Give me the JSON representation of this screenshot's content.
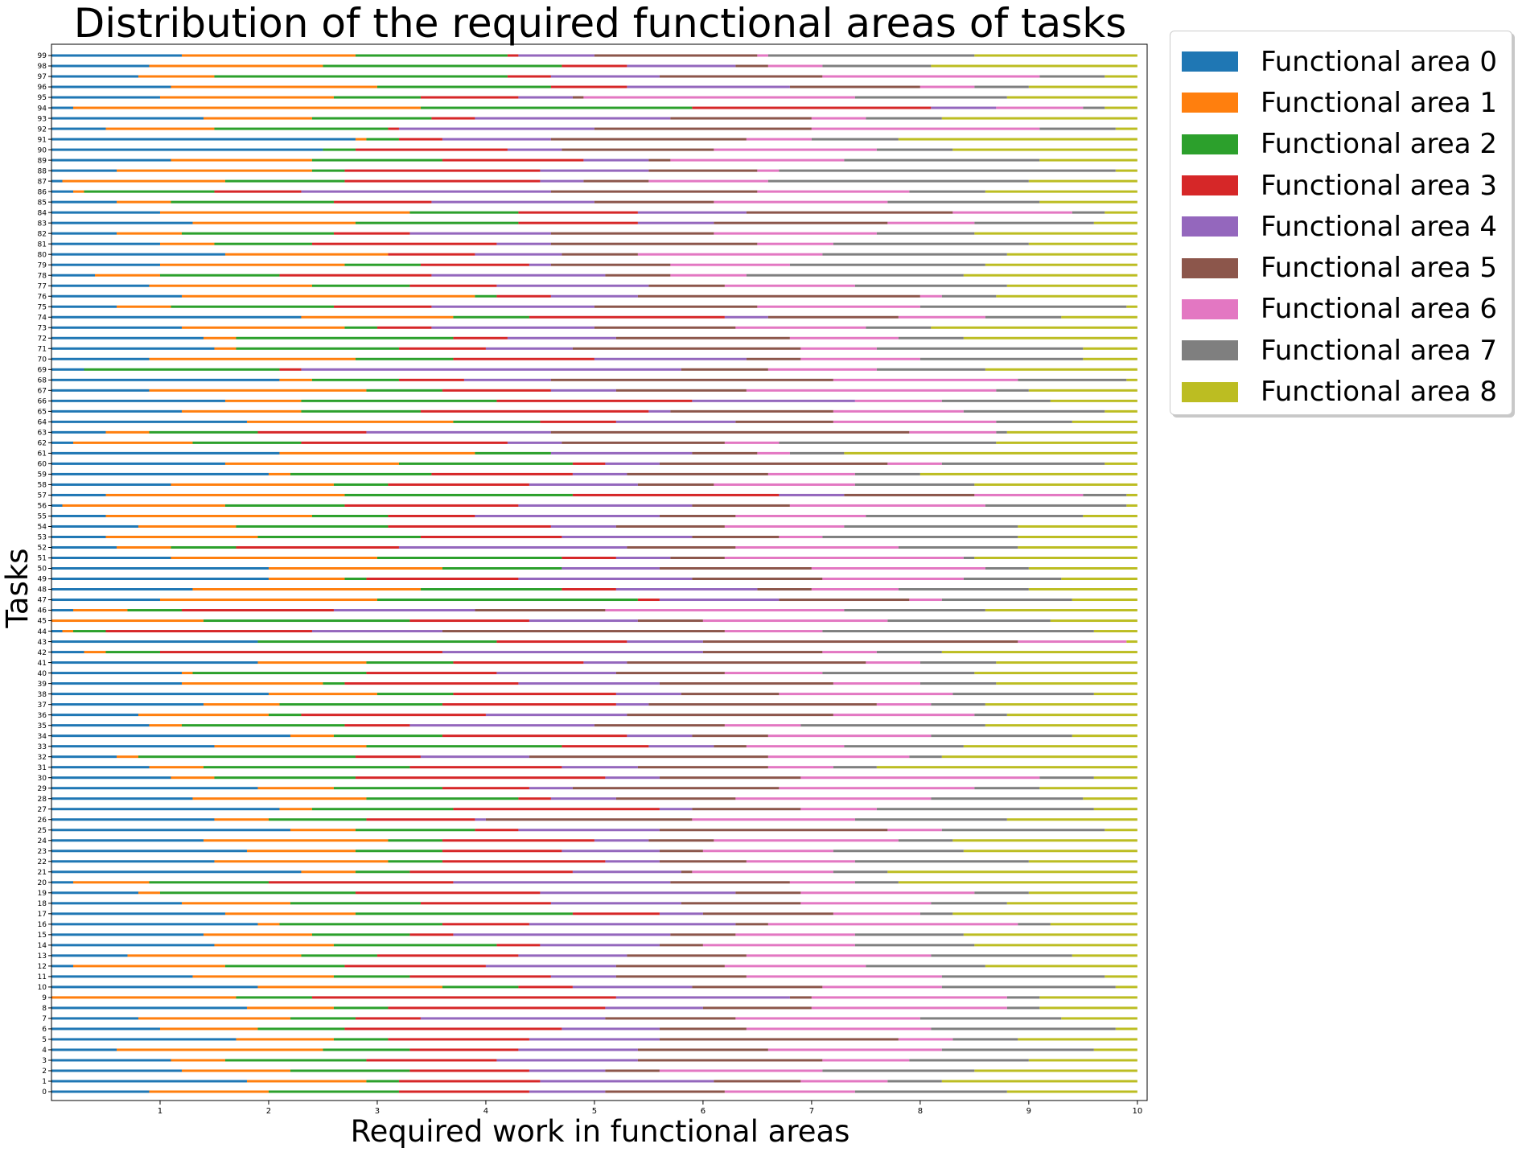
{
  "chart_data": {
    "type": "bar",
    "orientation": "horizontal",
    "stacked": true,
    "title": "Distribution of the required functional areas of tasks",
    "xlabel": "Required work in functional areas",
    "ylabel": "Tasks",
    "xlim": [
      0,
      10
    ],
    "x_ticks": [
      "1",
      "2",
      "3",
      "4",
      "5",
      "6",
      "7",
      "8",
      "9",
      "10"
    ],
    "legend_position": "outside-top-right",
    "series": [
      {
        "name": "Functional area 0",
        "color": "#1f77b4"
      },
      {
        "name": "Functional area 1",
        "color": "#ff7f0e"
      },
      {
        "name": "Functional area 2",
        "color": "#2ca02c"
      },
      {
        "name": "Functional area 3",
        "color": "#d62728"
      },
      {
        "name": "Functional area 4",
        "color": "#9467bd"
      },
      {
        "name": "Functional area 5",
        "color": "#8c564b"
      },
      {
        "name": "Functional area 6",
        "color": "#e377c2"
      },
      {
        "name": "Functional area 7",
        "color": "#7f7f7f"
      },
      {
        "name": "Functional area 8",
        "color": "#bcbd22"
      }
    ],
    "categories": [
      "0",
      "1",
      "2",
      "3",
      "4",
      "5",
      "6",
      "7",
      "8",
      "9",
      "10",
      "11",
      "12",
      "13",
      "14",
      "15",
      "16",
      "17",
      "18",
      "19",
      "20",
      "21",
      "22",
      "23",
      "24",
      "25",
      "26",
      "27",
      "28",
      "29",
      "30",
      "31",
      "32",
      "33",
      "34",
      "35",
      "36",
      "37",
      "38",
      "39",
      "40",
      "41",
      "42",
      "43",
      "44",
      "45",
      "46",
      "47",
      "48",
      "49",
      "50",
      "51",
      "52",
      "53",
      "54",
      "55",
      "56",
      "57",
      "58",
      "59",
      "60",
      "61",
      "62",
      "63",
      "64",
      "65",
      "66",
      "67",
      "68",
      "69",
      "70",
      "71",
      "72",
      "73",
      "74",
      "75",
      "76",
      "77",
      "78",
      "79",
      "80",
      "81",
      "82",
      "83",
      "84",
      "85",
      "86",
      "87",
      "88",
      "89",
      "90",
      "91",
      "92",
      "93",
      "94",
      "95",
      "96",
      "97",
      "98",
      "99"
    ],
    "cumulative_boundaries": [
      [
        0.9,
        2.0,
        3.2,
        4.4,
        5.1,
        6.2,
        7.4,
        8.8
      ],
      [
        1.8,
        2.9,
        3.2,
        4.5,
        6.1,
        6.9,
        7.7,
        8.2
      ],
      [
        1.2,
        2.2,
        3.3,
        4.4,
        5.1,
        5.6,
        7.1,
        8.5
      ],
      [
        1.1,
        1.6,
        2.9,
        4.1,
        5.4,
        7.1,
        7.9,
        9.0
      ],
      [
        0.6,
        2.5,
        3.3,
        4.3,
        5.4,
        6.6,
        8.2,
        9.6
      ],
      [
        1.7,
        2.6,
        3.1,
        4.4,
        5.6,
        7.8,
        8.3,
        8.9
      ],
      [
        1.0,
        1.9,
        2.7,
        4.7,
        5.6,
        6.4,
        8.1,
        9.8
      ],
      [
        0.8,
        2.2,
        2.8,
        3.4,
        5.1,
        6.3,
        8.0,
        9.3
      ],
      [
        1.8,
        2.6,
        3.1,
        5.1,
        6.0,
        7.0,
        8.8,
        9.1
      ],
      [
        0.0,
        1.7,
        2.4,
        5.2,
        6.8,
        7.0,
        8.8,
        9.1
      ],
      [
        1.9,
        3.6,
        4.3,
        4.8,
        5.9,
        7.1,
        8.2,
        9.8
      ],
      [
        1.3,
        2.6,
        3.3,
        4.6,
        5.2,
        6.4,
        8.2,
        9.7
      ],
      [
        0.2,
        1.6,
        2.7,
        4.0,
        5.2,
        6.2,
        7.5,
        8.6
      ],
      [
        0.7,
        2.3,
        3.0,
        4.3,
        5.3,
        6.4,
        8.1,
        9.4
      ],
      [
        1.5,
        2.6,
        4.1,
        4.5,
        5.6,
        6.0,
        7.4,
        8.5
      ],
      [
        1.4,
        2.4,
        3.3,
        3.7,
        5.7,
        6.3,
        7.4,
        8.4
      ],
      [
        1.9,
        2.1,
        3.6,
        4.4,
        6.3,
        6.6,
        8.9,
        9.2
      ],
      [
        1.6,
        2.8,
        4.8,
        5.6,
        6.0,
        7.2,
        8.0,
        8.3
      ],
      [
        1.2,
        2.2,
        3.4,
        4.6,
        5.8,
        6.9,
        8.1,
        8.8
      ],
      [
        0.8,
        1.0,
        2.8,
        4.5,
        6.3,
        6.9,
        8.5,
        9.0
      ],
      [
        0.2,
        0.9,
        2.0,
        3.7,
        5.7,
        6.8,
        7.4,
        7.8
      ],
      [
        2.3,
        2.8,
        3.3,
        4.8,
        5.8,
        5.9,
        7.2,
        7.7
      ],
      [
        1.5,
        3.1,
        3.6,
        5.1,
        5.6,
        6.4,
        7.4,
        9.0
      ],
      [
        1.8,
        2.8,
        3.6,
        4.7,
        5.6,
        6.0,
        7.2,
        8.4
      ],
      [
        1.4,
        3.1,
        3.6,
        5.0,
        5.5,
        6.1,
        7.8,
        8.3
      ],
      [
        2.2,
        2.8,
        3.9,
        4.3,
        5.6,
        7.7,
        8.2,
        9.7
      ],
      [
        1.5,
        2.0,
        2.9,
        3.9,
        4.0,
        5.9,
        7.4,
        8.8
      ],
      [
        2.1,
        2.4,
        3.7,
        5.6,
        5.9,
        6.9,
        7.6,
        9.6
      ],
      [
        1.3,
        2.9,
        4.3,
        4.6,
        5.2,
        6.3,
        8.1,
        9.5
      ],
      [
        1.9,
        2.6,
        3.6,
        4.4,
        4.8,
        6.7,
        8.5,
        9.1
      ],
      [
        1.1,
        1.5,
        2.8,
        5.1,
        5.6,
        6.9,
        9.1,
        9.6
      ],
      [
        0.9,
        1.4,
        3.3,
        4.7,
        5.4,
        6.6,
        7.2,
        7.6
      ],
      [
        0.6,
        0.8,
        2.8,
        3.4,
        4.4,
        6.6,
        7.9,
        8.2
      ],
      [
        1.5,
        2.9,
        4.7,
        5.5,
        6.1,
        6.4,
        7.3,
        8.4
      ],
      [
        2.2,
        2.6,
        3.6,
        5.3,
        5.9,
        6.6,
        8.1,
        9.4
      ],
      [
        0.9,
        1.2,
        2.7,
        3.3,
        5.0,
        6.2,
        6.9,
        8.6
      ],
      [
        0.8,
        2.0,
        2.3,
        4.0,
        5.3,
        7.2,
        8.5,
        8.8
      ],
      [
        1.4,
        2.1,
        3.6,
        5.2,
        5.5,
        7.6,
        8.1,
        8.6
      ],
      [
        2.0,
        3.0,
        3.7,
        5.2,
        5.8,
        6.7,
        8.3,
        9.6
      ],
      [
        1.2,
        2.5,
        2.7,
        4.3,
        5.6,
        7.2,
        8.0,
        8.7
      ],
      [
        1.2,
        1.3,
        2.9,
        4.1,
        5.2,
        6.2,
        7.1,
        8.5
      ],
      [
        1.9,
        2.9,
        3.7,
        4.9,
        5.3,
        7.5,
        8.0,
        8.7
      ],
      [
        0.3,
        0.5,
        1.0,
        3.6,
        6.0,
        7.1,
        7.6,
        8.2
      ],
      [
        1.9,
        1.9,
        4.1,
        5.3,
        6.0,
        8.9,
        9.9,
        9.9
      ],
      [
        0.1,
        0.2,
        0.5,
        2.4,
        3.6,
        6.2,
        7.1,
        9.6
      ],
      [
        0.0,
        1.4,
        3.3,
        4.4,
        5.4,
        6.0,
        7.7,
        9.2
      ],
      [
        0.2,
        0.7,
        1.2,
        2.6,
        3.9,
        5.1,
        7.3,
        8.6
      ],
      [
        1.0,
        3.0,
        5.4,
        5.6,
        6.7,
        7.9,
        8.2,
        9.4
      ],
      [
        1.3,
        3.4,
        4.7,
        5.2,
        6.5,
        7.0,
        7.8,
        9.0
      ],
      [
        2.0,
        2.7,
        2.9,
        4.3,
        5.9,
        7.1,
        8.4,
        9.3
      ],
      [
        2.0,
        3.6,
        4.7,
        4.7,
        5.6,
        7.0,
        8.6,
        9.0
      ],
      [
        1.1,
        3.0,
        4.7,
        5.2,
        5.7,
        6.2,
        8.4,
        8.5
      ],
      [
        0.6,
        1.1,
        1.7,
        3.2,
        5.3,
        6.3,
        7.8,
        8.9
      ],
      [
        0.5,
        1.9,
        3.4,
        4.7,
        5.9,
        6.7,
        7.1,
        8.9
      ],
      [
        0.8,
        1.7,
        3.1,
        4.6,
        5.2,
        6.2,
        7.3,
        8.9
      ],
      [
        0.5,
        2.4,
        3.1,
        3.9,
        5.6,
        6.3,
        7.5,
        9.5
      ],
      [
        0.1,
        1.6,
        2.7,
        4.3,
        5.9,
        6.8,
        8.6,
        9.9
      ],
      [
        0.5,
        2.7,
        4.8,
        6.7,
        7.3,
        8.5,
        9.5,
        9.9
      ],
      [
        1.1,
        2.6,
        3.1,
        4.4,
        5.4,
        6.1,
        7.4,
        8.5
      ],
      [
        2.0,
        2.2,
        3.5,
        4.8,
        5.3,
        6.6,
        7.4,
        8.0
      ],
      [
        1.6,
        3.2,
        4.8,
        5.1,
        5.6,
        7.7,
        8.2,
        9.7
      ],
      [
        2.1,
        3.9,
        4.6,
        4.6,
        5.9,
        6.5,
        6.8,
        7.3
      ],
      [
        0.2,
        1.3,
        2.3,
        4.2,
        4.7,
        6.2,
        6.7,
        8.7
      ],
      [
        0.5,
        0.9,
        1.9,
        2.9,
        4.6,
        7.9,
        8.7,
        8.8
      ],
      [
        1.8,
        3.7,
        4.5,
        5.2,
        6.3,
        7.2,
        8.7,
        9.4
      ],
      [
        1.2,
        2.3,
        3.4,
        5.5,
        5.7,
        7.2,
        8.4,
        9.7
      ],
      [
        1.6,
        2.3,
        4.1,
        5.9,
        7.4,
        7.4,
        8.2,
        9.2
      ],
      [
        0.9,
        2.9,
        3.6,
        4.6,
        5.2,
        6.4,
        8.7,
        9.0
      ],
      [
        2.1,
        2.4,
        3.2,
        3.8,
        4.6,
        7.2,
        8.9,
        9.9
      ],
      [
        0.3,
        0.3,
        2.1,
        2.3,
        5.8,
        6.6,
        7.6,
        8.6
      ],
      [
        0.9,
        2.8,
        3.7,
        5.0,
        6.4,
        6.9,
        8.0,
        9.5
      ],
      [
        1.5,
        1.7,
        3.2,
        4.0,
        4.8,
        6.9,
        7.6,
        9.5
      ],
      [
        1.4,
        1.7,
        3.7,
        4.2,
        5.2,
        6.8,
        7.8,
        8.4
      ],
      [
        1.2,
        2.7,
        3.0,
        3.5,
        5.0,
        6.3,
        7.5,
        8.1
      ],
      [
        2.3,
        3.7,
        4.4,
        6.2,
        6.6,
        7.8,
        8.6,
        9.3
      ],
      [
        0.6,
        1.1,
        2.6,
        3.5,
        5.0,
        6.5,
        8.0,
        9.9
      ],
      [
        1.2,
        3.9,
        4.1,
        4.6,
        5.4,
        8.0,
        8.2,
        8.7
      ],
      [
        0.9,
        2.4,
        3.3,
        4.1,
        5.5,
        6.2,
        7.4,
        8.8
      ],
      [
        0.4,
        1.0,
        2.1,
        3.5,
        5.1,
        5.7,
        6.4,
        8.4
      ],
      [
        1.0,
        2.7,
        3.4,
        4.4,
        4.6,
        5.7,
        6.8,
        8.6
      ],
      [
        1.6,
        3.1,
        3.1,
        3.9,
        4.7,
        5.4,
        7.1,
        8.8
      ],
      [
        1.0,
        1.5,
        2.4,
        4.1,
        4.6,
        6.5,
        7.2,
        9.0
      ],
      [
        0.6,
        1.2,
        2.6,
        3.3,
        4.6,
        6.1,
        7.6,
        8.5
      ],
      [
        1.3,
        2.8,
        4.3,
        5.4,
        6.1,
        7.7,
        8.5,
        9.6
      ],
      [
        1.0,
        3.3,
        4.3,
        5.4,
        6.4,
        8.3,
        9.4,
        9.7
      ],
      [
        0.6,
        1.1,
        2.6,
        3.5,
        5.0,
        6.1,
        7.7,
        9.1
      ],
      [
        0.2,
        0.3,
        1.5,
        2.3,
        4.6,
        6.5,
        7.9,
        8.6
      ],
      [
        0.1,
        1.6,
        2.7,
        4.5,
        4.9,
        5.5,
        6.6,
        9.0
      ],
      [
        0.6,
        2.4,
        2.7,
        4.5,
        5.5,
        6.5,
        6.7,
        9.8
      ],
      [
        1.1,
        2.4,
        3.6,
        4.9,
        5.5,
        5.7,
        7.3,
        9.1
      ],
      [
        2.5,
        2.5,
        2.8,
        4.2,
        4.7,
        6.1,
        7.6,
        8.3
      ],
      [
        2.8,
        2.9,
        3.2,
        3.6,
        4.6,
        6.4,
        7.0,
        7.8
      ],
      [
        0.5,
        1.5,
        3.1,
        3.2,
        5.0,
        7.0,
        9.1,
        9.8
      ],
      [
        1.4,
        2.4,
        3.5,
        3.9,
        5.7,
        7.0,
        7.5,
        8.2
      ],
      [
        0.2,
        3.4,
        5.9,
        8.1,
        8.7,
        8.7,
        9.5,
        9.7
      ],
      [
        1.0,
        2.6,
        3.4,
        4.3,
        4.8,
        4.9,
        7.4,
        8.8
      ],
      [
        1.1,
        3.0,
        4.6,
        5.3,
        6.8,
        8.0,
        8.5,
        9.0
      ],
      [
        0.8,
        1.5,
        4.2,
        4.6,
        5.6,
        7.1,
        9.1,
        9.7
      ],
      [
        0.9,
        2.5,
        4.7,
        5.3,
        6.3,
        6.6,
        7.1,
        8.1
      ],
      [
        1.2,
        2.8,
        4.2,
        4.3,
        5.0,
        6.5,
        6.6,
        8.5
      ]
    ]
  }
}
